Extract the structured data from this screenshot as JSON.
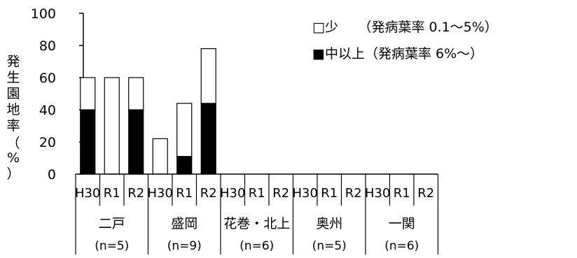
{
  "chart_data": {
    "type": "bar",
    "stacked": true,
    "ylabel_chars": [
      "発",
      "生",
      "園",
      "地",
      "率",
      "（",
      "%",
      "）"
    ],
    "yticks": [
      0,
      20,
      40,
      60,
      80,
      100
    ],
    "ylim": [
      0,
      100
    ],
    "regions": [
      {
        "name": "二戸",
        "n": "(n=5)"
      },
      {
        "name": "盛岡",
        "n": "(n=9)"
      },
      {
        "name": "花巻・北上",
        "n": "(n=6)"
      },
      {
        "name": "奥州",
        "n": "(n=5)"
      },
      {
        "name": "一関",
        "n": "(n=6)"
      }
    ],
    "years": [
      "H30",
      "R1",
      "R2"
    ],
    "series": [
      {
        "name": "中以上（発病葉率 6%～）",
        "legend_mark": "■",
        "color": "#000000",
        "values": [
          [
            40,
            0,
            40
          ],
          [
            0,
            11,
            44
          ],
          [
            null,
            null,
            null
          ],
          [
            null,
            null,
            null
          ],
          [
            null,
            null,
            null
          ]
        ]
      },
      {
        "name": "少　　（発病葉率 0.1～5%）",
        "legend_mark": "□",
        "color": "#ffffff",
        "values": [
          [
            20,
            60,
            20
          ],
          [
            22,
            33,
            34
          ],
          [
            null,
            null,
            null
          ],
          [
            null,
            null,
            null
          ],
          [
            null,
            null,
            null
          ]
        ]
      }
    ],
    "grid": false,
    "legend_position": "top-right"
  }
}
